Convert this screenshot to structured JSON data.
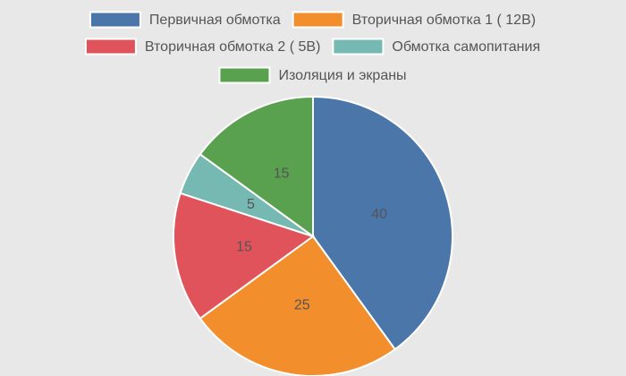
{
  "chart_data": {
    "type": "pie",
    "title": "",
    "legend_position": "top",
    "categories": [
      "Первичная обмотка",
      "Вторичная обмотка 1 ( 12В)",
      "Вторичная обмотка 2 ( 5В)",
      "Обмотка самопитания",
      "Изоляция и экраны"
    ],
    "values": [
      40,
      25,
      15,
      5,
      15
    ],
    "colors": [
      "#4a76aa",
      "#f28f2c",
      "#e0535a",
      "#76b8b2",
      "#5aa14f"
    ],
    "value_labels": [
      "40",
      "25",
      "15",
      "5",
      "15"
    ]
  }
}
